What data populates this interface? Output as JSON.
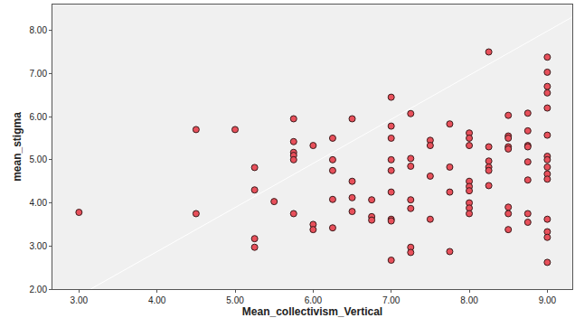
{
  "chart_data": {
    "type": "scatter",
    "x_label": "Mean_collectivism_Vertical",
    "y_label": "mean_stigma",
    "xlim": [
      2.66,
      9.32
    ],
    "ylim": [
      2.0,
      8.6
    ],
    "xticks": [
      {
        "value": 3,
        "label": "3.00"
      },
      {
        "value": 4,
        "label": "4.00"
      },
      {
        "value": 5,
        "label": "5.00"
      },
      {
        "value": 6,
        "label": "6.00"
      },
      {
        "value": 7,
        "label": "7.00"
      },
      {
        "value": 8,
        "label": "8.00"
      },
      {
        "value": 9,
        "label": "9.00"
      }
    ],
    "yticks": [
      {
        "value": 2,
        "label": "2.00"
      },
      {
        "value": 3,
        "label": "3.00"
      },
      {
        "value": 4,
        "label": "4.00"
      },
      {
        "value": 5,
        "label": "5.00"
      },
      {
        "value": 6,
        "label": "6.00"
      },
      {
        "value": 7,
        "label": "7.00"
      },
      {
        "value": 8,
        "label": "8.00"
      }
    ],
    "grid": false,
    "series": [
      {
        "type": "scatter",
        "color": "#e8505b",
        "marker": "circle",
        "x": [
          3.0,
          4.5,
          4.5,
          5.0,
          5.25,
          5.25,
          5.25,
          5.25,
          5.5,
          5.75,
          5.75,
          5.75,
          5.75,
          5.75,
          5.75,
          6.0,
          6.0,
          6.0,
          6.25,
          6.25,
          6.25,
          6.25,
          6.25,
          6.5,
          6.5,
          6.5,
          6.5,
          6.75,
          6.75,
          6.75,
          7.0,
          7.0,
          7.0,
          7.0,
          7.0,
          7.0,
          7.0,
          7.0,
          7.0,
          7.25,
          7.25,
          7.25,
          7.25,
          7.25,
          7.25,
          7.25,
          7.5,
          7.5,
          7.5,
          7.5,
          7.75,
          7.75,
          7.75,
          7.75,
          8.0,
          8.0,
          8.0,
          8.0,
          8.0,
          8.0,
          8.0,
          8.0,
          8.0,
          8.25,
          8.25,
          8.25,
          8.25,
          8.25,
          8.25,
          8.5,
          8.5,
          8.5,
          8.5,
          8.5,
          8.5,
          8.5,
          8.5,
          8.75,
          8.75,
          8.75,
          8.75,
          8.75,
          8.75,
          8.75,
          8.75,
          9.0,
          9.0,
          9.0,
          9.0,
          9.0,
          9.0,
          9.0,
          9.0,
          9.0,
          9.0,
          9.0,
          9.0,
          9.0,
          9.0,
          9.0
        ],
        "values": [
          3.78,
          5.7,
          3.75,
          5.7,
          4.82,
          4.3,
          3.17,
          2.97,
          4.03,
          5.95,
          5.42,
          5.17,
          5.1,
          5.0,
          3.75,
          5.33,
          3.5,
          3.38,
          5.5,
          5.0,
          4.75,
          4.08,
          3.42,
          5.95,
          4.5,
          4.12,
          3.8,
          4.07,
          3.68,
          3.6,
          6.45,
          5.78,
          5.5,
          5.0,
          4.75,
          4.25,
          3.62,
          3.58,
          2.67,
          6.07,
          5.03,
          4.85,
          4.07,
          3.87,
          2.97,
          2.85,
          5.45,
          5.33,
          4.62,
          3.62,
          5.83,
          4.83,
          4.25,
          2.87,
          5.62,
          5.5,
          5.33,
          4.5,
          4.38,
          4.28,
          4.0,
          3.88,
          3.75,
          7.5,
          5.3,
          4.97,
          4.83,
          4.75,
          4.4,
          6.03,
          5.55,
          5.5,
          5.3,
          5.25,
          3.9,
          3.75,
          3.38,
          6.08,
          5.67,
          5.33,
          5.3,
          4.95,
          4.53,
          3.75,
          3.55,
          7.38,
          7.03,
          6.7,
          6.55,
          6.2,
          5.57,
          5.08,
          5.0,
          4.83,
          4.67,
          4.55,
          3.62,
          3.33,
          3.2,
          2.62
        ]
      },
      {
        "type": "line",
        "color": "#ffffff",
        "line_style": "solid",
        "x": [
          3.15,
          9.32
        ],
        "values": [
          2.0,
          8.31
        ]
      }
    ]
  }
}
